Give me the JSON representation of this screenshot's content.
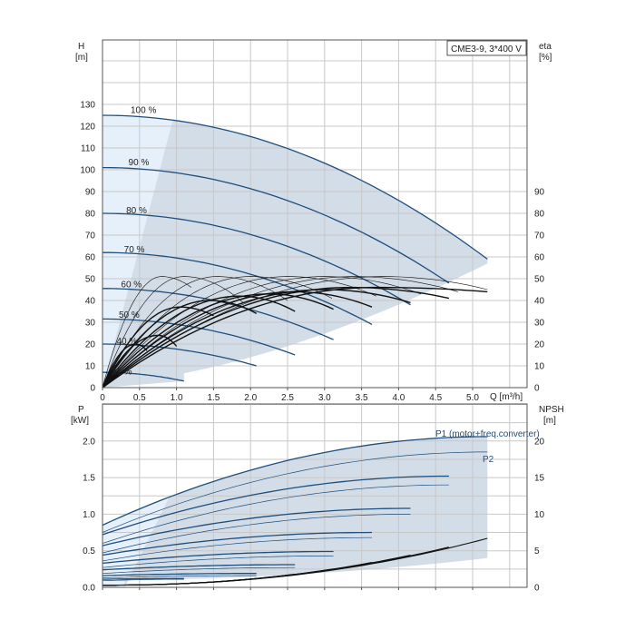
{
  "title": "CME3-9, 3*400 V",
  "colors": {
    "band": "#d3dde8",
    "band_light": "#e6f0fa",
    "curve": "#1f4e7c",
    "black": "#111111",
    "grid": "#c8c8c8"
  },
  "chart_data": [
    {
      "type": "line",
      "name": "head-efficiency",
      "title": "CME3-9, 3*400 V",
      "xlabel": "Q [m³/h]",
      "ylabel_left": [
        "H",
        "[m]"
      ],
      "ylabel_right": [
        "eta",
        "[%]"
      ],
      "xlim": [
        0,
        5.7
      ],
      "ylim": [
        0,
        160
      ],
      "xticks": [
        "0",
        "0.5",
        "1.0",
        "1.5",
        "2.0",
        "2.5",
        "3.0",
        "3.5",
        "4.0",
        "4.5",
        "5.0"
      ],
      "yticks_left": [
        "0",
        "10",
        "20",
        "30",
        "40",
        "50",
        "60",
        "70",
        "80",
        "90",
        "100",
        "110",
        "120",
        "130"
      ],
      "yticks_right": [
        "0",
        "10",
        "20",
        "30",
        "40",
        "50",
        "60",
        "70",
        "80",
        "90"
      ],
      "speed_labels": [
        {
          "text": "100 %",
          "x": 0.38,
          "y": 126
        },
        {
          "text": "90 %",
          "x": 0.35,
          "y": 102
        },
        {
          "text": "80 %",
          "x": 0.32,
          "y": 80
        },
        {
          "text": "70 %",
          "x": 0.29,
          "y": 62
        },
        {
          "text": "60 %",
          "x": 0.25,
          "y": 46
        },
        {
          "text": "50 %",
          "x": 0.22,
          "y": 32
        },
        {
          "text": "40 %",
          "x": 0.19,
          "y": 20
        },
        {
          "text": "31 %",
          "x": 0.12,
          "y": 6
        }
      ],
      "head_curves": [
        {
          "speed": 100,
          "h0": 125,
          "qmax": 5.2,
          "hend": 59
        },
        {
          "speed": 90,
          "h0": 101,
          "qmax": 4.68,
          "hend": 48
        },
        {
          "speed": 80,
          "h0": 80,
          "qmax": 4.16,
          "hend": 38
        },
        {
          "speed": 70,
          "h0": 62,
          "qmax": 3.64,
          "hend": 29
        },
        {
          "speed": 60,
          "h0": 45.5,
          "qmax": 3.12,
          "hend": 22
        },
        {
          "speed": 50,
          "h0": 31.5,
          "qmax": 2.6,
          "hend": 15
        },
        {
          "speed": 40,
          "h0": 20,
          "qmax": 2.08,
          "hend": 10
        },
        {
          "speed": 31,
          "h0": 7,
          "qmax": 1.1,
          "hend": 3
        }
      ],
      "efficiency_curves": [
        {
          "qpeak": 3.7,
          "etamax": 46,
          "qend": 5.2,
          "etaend": 44
        },
        {
          "qpeak": 3.35,
          "etamax": 46,
          "qend": 4.68,
          "etaend": 41
        },
        {
          "qpeak": 3.0,
          "etamax": 45,
          "qend": 4.16,
          "etaend": 39
        },
        {
          "qpeak": 2.6,
          "etamax": 44,
          "qend": 3.64,
          "etaend": 37
        },
        {
          "qpeak": 2.25,
          "etamax": 43,
          "qend": 3.12,
          "etaend": 36
        },
        {
          "qpeak": 1.85,
          "etamax": 42,
          "qend": 2.6,
          "etaend": 35
        },
        {
          "qpeak": 1.45,
          "etamax": 40,
          "qend": 2.08,
          "etaend": 34
        },
        {
          "qpeak": 1.05,
          "etamax": 37,
          "qend": 1.5,
          "etaend": 33
        },
        {
          "qpeak": 0.75,
          "etamax": 24,
          "qend": 1.0,
          "etaend": 19
        },
        {
          "qpeak": 0.45,
          "etamax": 20,
          "qend": 0.6,
          "etaend": 17
        }
      ],
      "iso_efficiency_curves": [
        {
          "qpeak": 3.8,
          "etamax": 51,
          "qend": 5.2,
          "etaend": 45
        },
        {
          "qpeak": 3.4,
          "etamax": 51,
          "qend": 4.8,
          "etaend": 44
        },
        {
          "qpeak": 3.0,
          "etamax": 51,
          "qend": 4.3,
          "etaend": 43
        },
        {
          "qpeak": 2.5,
          "etamax": 51,
          "qend": 3.7,
          "etaend": 42
        },
        {
          "qpeak": 2.0,
          "etamax": 51,
          "qend": 3.1,
          "etaend": 41
        },
        {
          "qpeak": 1.55,
          "etamax": 51,
          "qend": 2.5,
          "etaend": 40
        },
        {
          "qpeak": 1.1,
          "etamax": 51,
          "qend": 1.9,
          "etaend": 39
        },
        {
          "qpeak": 0.8,
          "etamax": 51,
          "qend": 1.2,
          "etaend": 46
        }
      ]
    },
    {
      "type": "line",
      "name": "power-npsh",
      "xlim": [
        0,
        5.7
      ],
      "ylim": [
        0,
        2.5
      ],
      "ylabel_left": [
        "P",
        "[kW]"
      ],
      "ylabel_right": [
        "NPSH",
        "[m]"
      ],
      "yticks_left": [
        "0.0",
        "0.5",
        "1.0",
        "1.5",
        "2.0"
      ],
      "yticks_right": [
        "0",
        "5",
        "10",
        "15",
        "20"
      ],
      "legend": [
        "P1 (motor+freq.converter)",
        "P2"
      ],
      "p1_curves": [
        {
          "p0": 0.85,
          "pmax": 2.06,
          "qmax": 5.2
        },
        {
          "p0": 0.72,
          "pmax": 1.52,
          "qmax": 4.68
        },
        {
          "p0": 0.57,
          "pmax": 1.08,
          "qmax": 4.16
        },
        {
          "p0": 0.44,
          "pmax": 0.75,
          "qmax": 3.64
        },
        {
          "p0": 0.33,
          "pmax": 0.49,
          "qmax": 3.12
        },
        {
          "p0": 0.24,
          "pmax": 0.31,
          "qmax": 2.6
        },
        {
          "p0": 0.16,
          "pmax": 0.19,
          "qmax": 2.08
        },
        {
          "p0": 0.11,
          "pmax": 0.12,
          "qmax": 1.1
        }
      ],
      "p2_curves": [
        {
          "p0": 0.75,
          "pmax": 1.85,
          "qmax": 5.2
        },
        {
          "p0": 0.6,
          "pmax": 1.4,
          "qmax": 4.68
        },
        {
          "p0": 0.47,
          "pmax": 1.0,
          "qmax": 4.16
        },
        {
          "p0": 0.36,
          "pmax": 0.68,
          "qmax": 3.64
        },
        {
          "p0": 0.27,
          "pmax": 0.43,
          "qmax": 3.12
        },
        {
          "p0": 0.19,
          "pmax": 0.27,
          "qmax": 2.6
        },
        {
          "p0": 0.13,
          "pmax": 0.16,
          "qmax": 2.08
        },
        {
          "p0": 0.09,
          "pmax": 0.11,
          "qmax": 1.1
        }
      ],
      "npsh_curves": [
        {
          "qmax": 5.2,
          "nmax": 6.7
        },
        {
          "qmax": 4.68,
          "nmax": 5.5
        },
        {
          "qmax": 4.16,
          "nmax": 4.4
        },
        {
          "qmax": 3.64,
          "nmax": 3.4
        },
        {
          "qmax": 3.12,
          "nmax": 2.5
        },
        {
          "qmax": 2.6,
          "nmax": 1.8
        },
        {
          "qmax": 2.08,
          "nmax": 1.2
        }
      ]
    }
  ]
}
